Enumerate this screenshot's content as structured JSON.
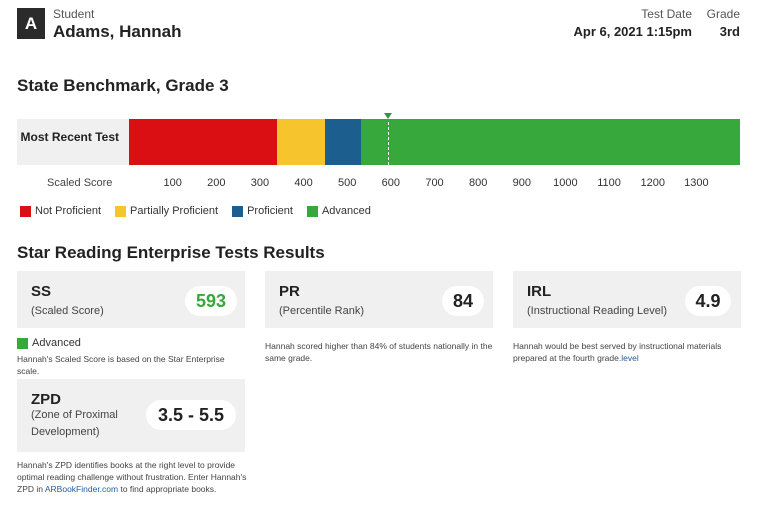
{
  "header": {
    "avatar_letter": "A",
    "student_label": "Student",
    "student_name": "Adams, Hannah",
    "test_date_label": "Test Date",
    "test_date_value": "Apr 6, 2021 1:15pm",
    "grade_label": "Grade",
    "grade_value": "3rd"
  },
  "benchmark": {
    "title": "State Benchmark, Grade 3",
    "row_label": "Most Recent Test",
    "axis_label": "Scaled Score",
    "ticks": [
      "100",
      "200",
      "300",
      "400",
      "500",
      "600",
      "700",
      "800",
      "900",
      "1000",
      "1100",
      "1200",
      "1300"
    ],
    "legend": [
      {
        "label": "Not Proficient",
        "color": "#d90f14"
      },
      {
        "label": "Partially Proficient",
        "color": "#f6c42c"
      },
      {
        "label": "Proficient",
        "color": "#1c5f8f"
      },
      {
        "label": "Advanced",
        "color": "#36a83c"
      }
    ],
    "score": 593,
    "segments": [
      {
        "from": 0,
        "to": 340,
        "color": "#d90f14"
      },
      {
        "from": 340,
        "to": 450,
        "color": "#f6c42c"
      },
      {
        "from": 450,
        "to": 532,
        "color": "#1c5f8f"
      },
      {
        "from": 532,
        "to": 1400,
        "color": "#36a83c"
      }
    ],
    "scale_min": 0,
    "scale_max": 1400
  },
  "results": {
    "title": "Star Reading Enterprise Tests Results",
    "ss": {
      "abbr": "SS",
      "name": "(Scaled Score)",
      "value": "593",
      "value_color": "#36a83c",
      "category": "Advanced",
      "category_color": "#36a83c",
      "note": "Hannah's Scaled Score is based on the Star Enterprise scale."
    },
    "pr": {
      "abbr": "PR",
      "name": "(Percentile Rank)",
      "value": "84",
      "note": "Hannah scored higher than 84% of students nationally in the same grade."
    },
    "irl": {
      "abbr": "IRL",
      "name": "(Instructional Reading Level)",
      "value": "4.9",
      "note_part1": "Hannah would be best served by instructional materials prepared at the fourth grade",
      "note_link": ".level"
    },
    "zpd": {
      "abbr": "ZPD",
      "name_line1": "(Zone of Proximal",
      "name_line2": "Development)",
      "value": "3.5 - 5.5",
      "note_part1": "Hannah's ZPD identifies books at the right level to provide optimal reading challenge without frustration. Enter Hannah's ZPD in ",
      "note_link": "ARBookFinder.com",
      "note_part2": " to find appropriate books."
    }
  }
}
